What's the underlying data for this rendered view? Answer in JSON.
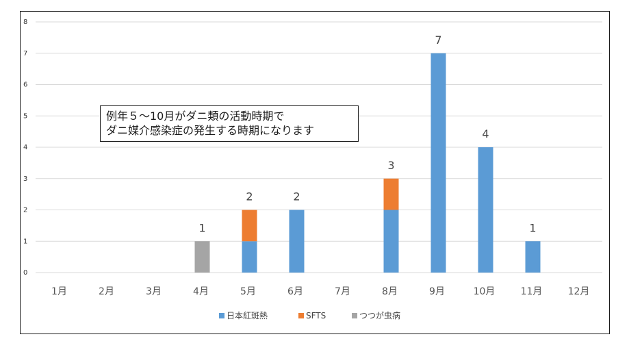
{
  "chart_data": {
    "type": "bar",
    "stacked": true,
    "categories": [
      "1月",
      "2月",
      "3月",
      "4月",
      "5月",
      "6月",
      "7月",
      "8月",
      "9月",
      "10月",
      "11月",
      "12月"
    ],
    "series": [
      {
        "name": "日本紅斑熱",
        "color": "#5b9bd5",
        "values": [
          0,
          0,
          0,
          0,
          1,
          2,
          0,
          2,
          7,
          4,
          1,
          0
        ]
      },
      {
        "name": "SFTS",
        "color": "#ed7d31",
        "values": [
          0,
          0,
          0,
          0,
          1,
          0,
          0,
          1,
          0,
          0,
          0,
          0
        ]
      },
      {
        "name": "つつが虫病",
        "color": "#a5a5a5",
        "values": [
          0,
          0,
          0,
          1,
          0,
          0,
          0,
          0,
          0,
          0,
          0,
          0
        ]
      }
    ],
    "totals": [
      null,
      null,
      null,
      1,
      2,
      2,
      null,
      3,
      7,
      4,
      1,
      null
    ],
    "yticks": [
      0,
      1,
      2,
      3,
      4,
      5,
      6,
      7,
      8
    ],
    "ylim": [
      0,
      8
    ],
    "grid": true,
    "legend": "bottom",
    "title": "",
    "xlabel": "",
    "ylabel": "",
    "annotation": {
      "line1": "例年５～10月がダニ類の活動時期で",
      "line2": "ダニ媒介感染症の発生する時期になります"
    }
  }
}
